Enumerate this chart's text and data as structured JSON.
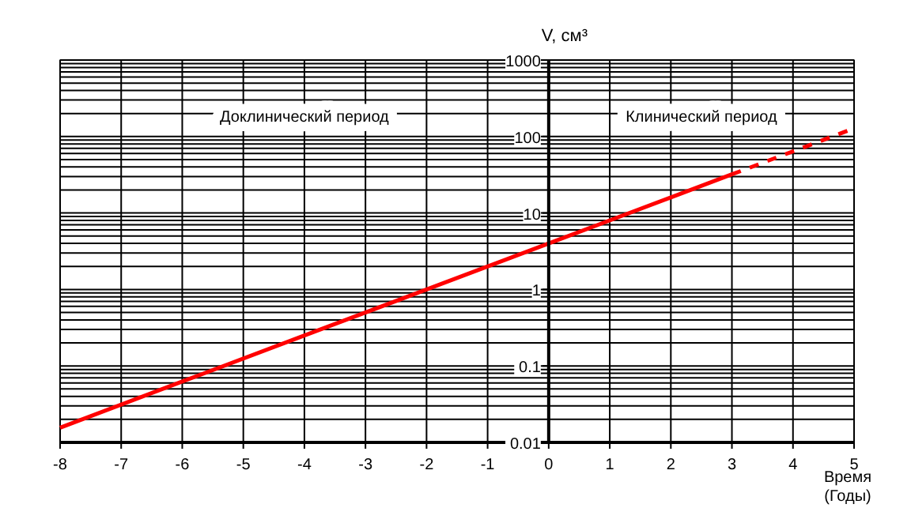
{
  "chart_data": {
    "type": "line",
    "xlabel": "Время (Годы)",
    "ylabel": "V, см³",
    "xlim": [
      -8,
      5
    ],
    "ylim": [
      0.01,
      1000
    ],
    "xticks": [
      -8,
      -7,
      -6,
      -5,
      -4,
      -3,
      -2,
      -1,
      0,
      1,
      2,
      3,
      4,
      5
    ],
    "yticks": [
      0.01,
      0.1,
      1,
      10,
      100,
      1000
    ],
    "log": "y",
    "grid": true,
    "marker": "none",
    "series": [
      {
        "color": "#ff0000",
        "line_style": "solid",
        "x": [
          -8,
          -6,
          -4,
          -2,
          0,
          2,
          3
        ],
        "values": [
          0.0156,
          0.0625,
          0.25,
          1,
          4,
          16,
          32
        ]
      },
      {
        "color": "#ff0000",
        "line_style": "dashed",
        "x": [
          3,
          4,
          5
        ],
        "values": [
          32,
          64,
          128
        ]
      }
    ],
    "annotations": [
      "Доклинический период",
      "Клинический период"
    ]
  }
}
